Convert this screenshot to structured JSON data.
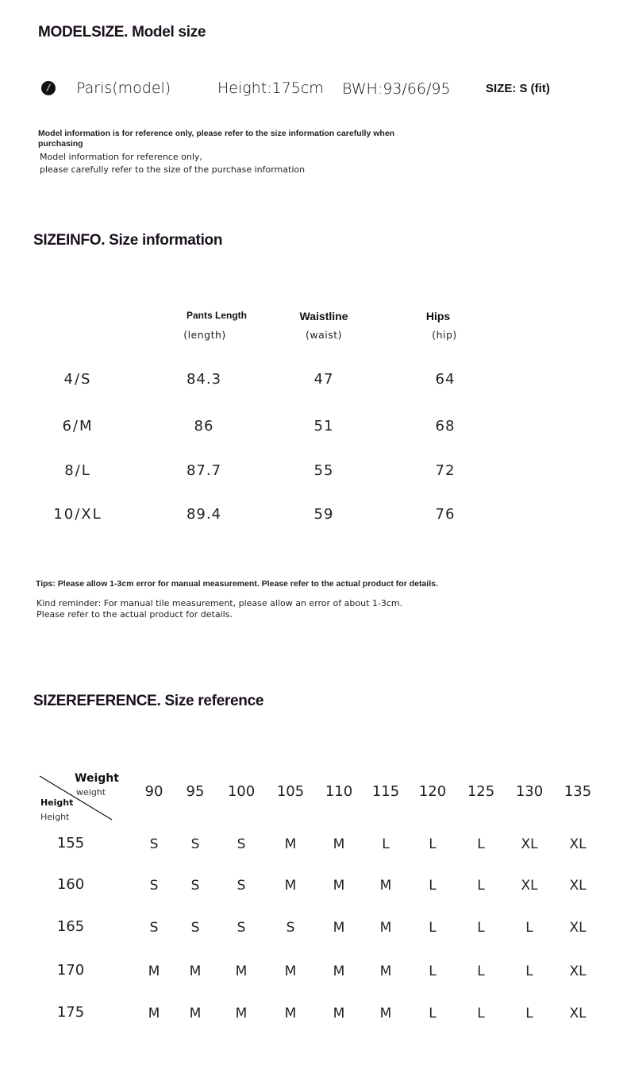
{
  "model_section": {
    "title": "MODELSIZE. Model size",
    "icon": "number-one-icon",
    "name": "Paris(model)",
    "height": "Height:175cm",
    "bwh": "BWH:93/66/95",
    "size": "SIZE: S (fit)",
    "note_bold_1": "Model information is for reference only, please refer to the size information carefully when",
    "note_bold_2": "purchasing",
    "note_1": "Model information for reference only,",
    "note_2": "please carefully refer to the size of the purchase information"
  },
  "size_info": {
    "title": "SIZEINFO. Size information",
    "headers": [
      {
        "label": "Pants Length",
        "sub": "(length)"
      },
      {
        "label": "Waistline",
        "sub": "(waist)"
      },
      {
        "label": "Hips",
        "sub": "(hip)"
      }
    ],
    "rows": [
      {
        "size": "4/S",
        "values": [
          "84.3",
          "47",
          "64"
        ]
      },
      {
        "size": "6/M",
        "values": [
          "86",
          "51",
          "68"
        ]
      },
      {
        "size": "8/L",
        "values": [
          "87.7",
          "55",
          "72"
        ]
      },
      {
        "size": "10/XL",
        "values": [
          "89.4",
          "59",
          "76"
        ]
      }
    ],
    "tip_bold": "Tips: Please allow 1-3cm error for manual measurement. Please refer to the actual product for details.",
    "tip_1": "Kind reminder: For manual tile measurement, please allow an error of about 1-3cm.",
    "tip_2": "Please refer to the actual product for details."
  },
  "size_reference": {
    "title": "SIZEREFERENCE. Size reference",
    "corner": {
      "weight_bold": "Weight",
      "weight": "weight",
      "height_bold": "Height",
      "height": "Height"
    },
    "weights": [
      "90",
      "95",
      "100",
      "105",
      "110",
      "115",
      "120",
      "125",
      "130",
      "135"
    ],
    "rows": [
      {
        "height": "155",
        "sizes": [
          "S",
          "S",
          "S",
          "M",
          "M",
          "L",
          "L",
          "L",
          "XL",
          "XL"
        ]
      },
      {
        "height": "160",
        "sizes": [
          "S",
          "S",
          "S",
          "M",
          "M",
          "M",
          "L",
          "L",
          "XL",
          "XL"
        ]
      },
      {
        "height": "165",
        "sizes": [
          "S",
          "S",
          "S",
          "S",
          "M",
          "M",
          "L",
          "L",
          "L",
          "XL"
        ]
      },
      {
        "height": "170",
        "sizes": [
          "M",
          "M",
          "M",
          "M",
          "M",
          "M",
          "L",
          "L",
          "L",
          "XL"
        ]
      },
      {
        "height": "175",
        "sizes": [
          "M",
          "M",
          "M",
          "M",
          "M",
          "M",
          "L",
          "L",
          "L",
          "XL"
        ]
      }
    ]
  }
}
